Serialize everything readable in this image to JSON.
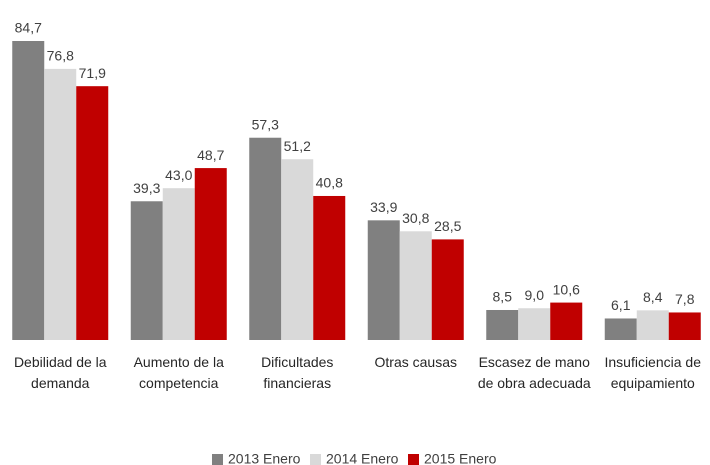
{
  "chart_data": {
    "type": "bar",
    "categories": [
      "Debilidad de la demanda",
      "Aumento de la competencia",
      "Dificultades financieras",
      "Otras causas",
      "Escasez de mano de obra adecuada",
      "Insuficiencia de equipamiento"
    ],
    "series": [
      {
        "name": "2013 Enero",
        "color": "#808080",
        "values": [
          84.7,
          39.3,
          57.3,
          33.9,
          8.5,
          6.1
        ],
        "value_labels": [
          "84,7",
          "39,3",
          "57,3",
          "33,9",
          "8,5",
          "6,1"
        ]
      },
      {
        "name": "2014 Enero",
        "color": "#d9d9d9",
        "values": [
          76.8,
          43.0,
          51.2,
          30.8,
          9.0,
          8.4
        ],
        "value_labels": [
          "76,8",
          "43,0",
          "51,2",
          "30,8",
          "9,0",
          "8,4"
        ]
      },
      {
        "name": "2015 Enero",
        "color": "#c00000",
        "values": [
          71.9,
          48.7,
          40.8,
          28.5,
          10.6,
          7.8
        ],
        "value_labels": [
          "71,9",
          "48,7",
          "40,8",
          "28,5",
          "10,6",
          "7,8"
        ]
      }
    ],
    "legend": "bottom"
  }
}
